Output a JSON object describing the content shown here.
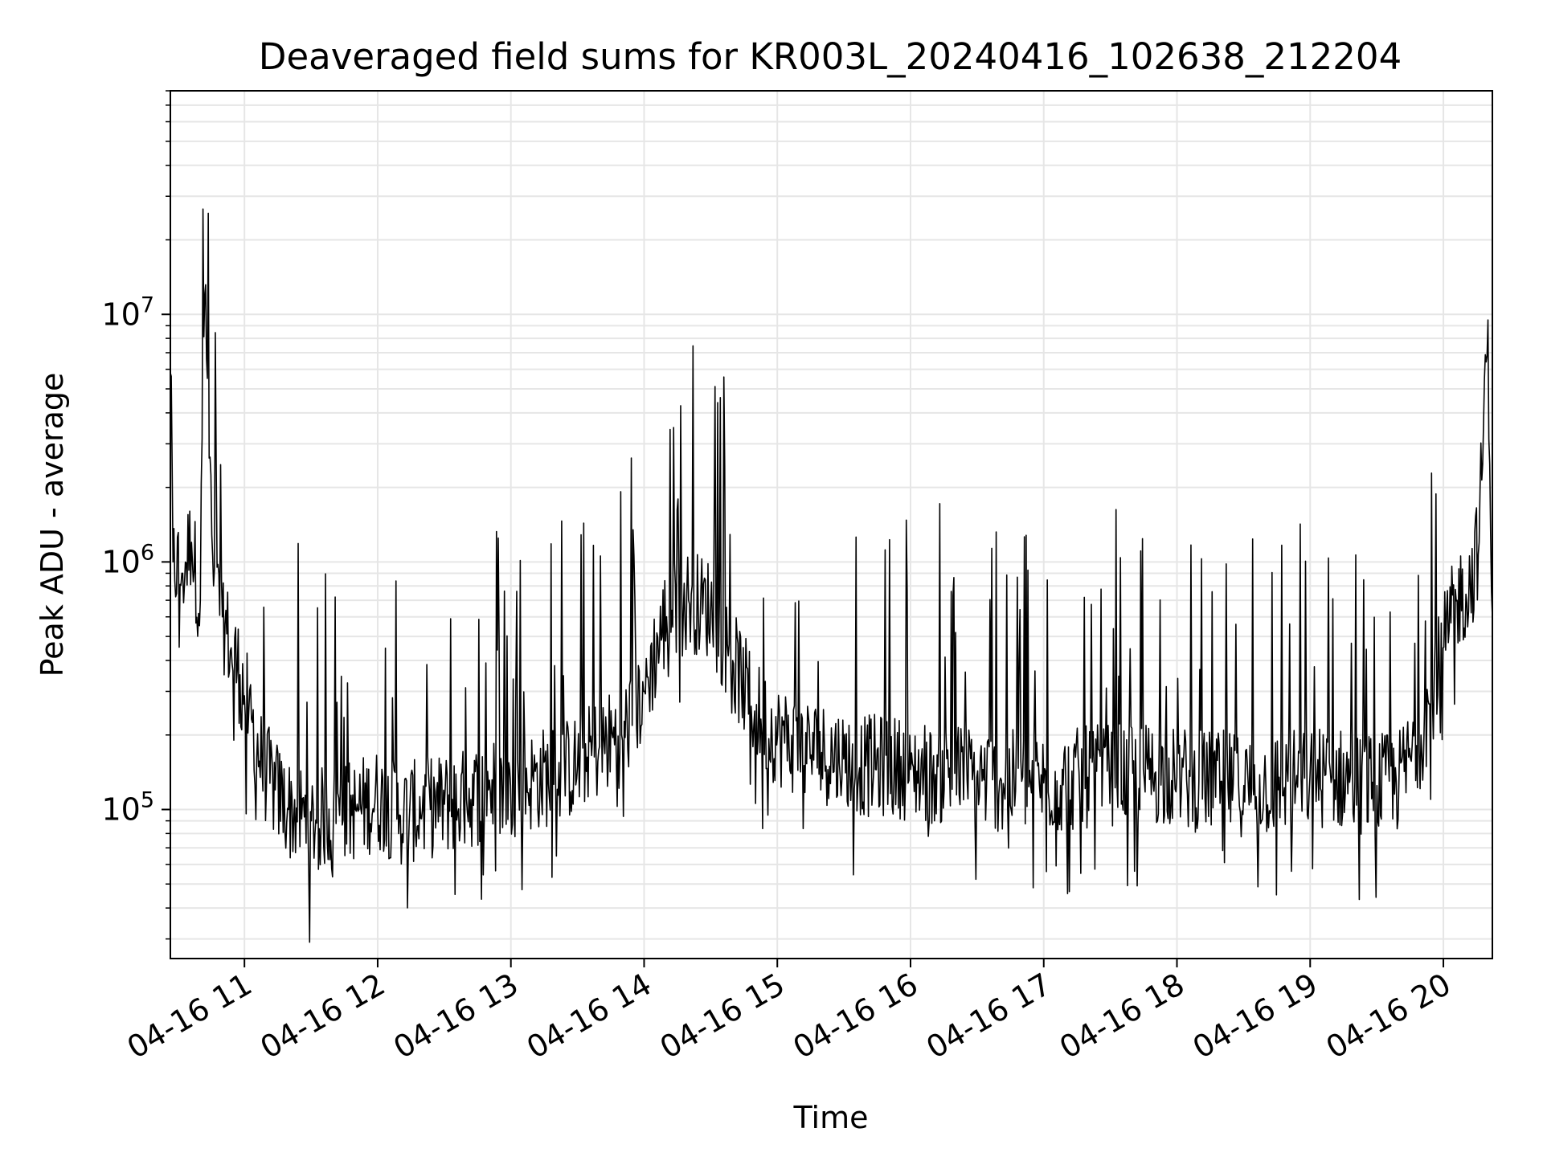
{
  "chart_data": {
    "type": "line",
    "title": "Deaveraged field sums for KR003L_20240416_102638_212204",
    "xlabel": "Time",
    "ylabel": "Peak ADU - average",
    "x_axis": {
      "kind": "time",
      "range": [
        "2024-04-16 10:26:38",
        "2024-04-16 20:22:04"
      ],
      "ticks": [
        "04-16 11",
        "04-16 12",
        "04-16 13",
        "04-16 14",
        "04-16 15",
        "04-16 16",
        "04-16 17",
        "04-16 18",
        "04-16 19",
        "04-16 20"
      ],
      "tick_rotation_deg": 30
    },
    "y_axis": {
      "scale": "log",
      "range": [
        25000,
        80000000
      ],
      "ticks": [
        {
          "value": 100000,
          "base": "10",
          "exp": "5"
        },
        {
          "value": 1000000,
          "base": "10",
          "exp": "6"
        },
        {
          "value": 10000000,
          "base": "10",
          "exp": "7"
        }
      ]
    },
    "grid": true,
    "legend": "none",
    "series": [
      {
        "color": "#000000",
        "x": [
          "10:26:38",
          "10:28",
          "10:32",
          "10:36",
          "10:40",
          "10:42",
          "10:46",
          "10:50",
          "10:54",
          "10:58",
          "11:02",
          "11:08",
          "11:14",
          "11:20",
          "11:30",
          "11:40",
          "11:50",
          "12:00",
          "12:10",
          "12:20",
          "12:30",
          "12:40",
          "12:50",
          "13:00",
          "13:10",
          "13:20",
          "13:30",
          "13:40",
          "13:50",
          "14:00",
          "14:10",
          "14:20",
          "14:30",
          "14:40",
          "14:50",
          "15:00",
          "15:10",
          "15:20",
          "15:30",
          "15:40",
          "15:50",
          "16:00",
          "16:10",
          "16:20",
          "16:30",
          "16:40",
          "16:50",
          "17:00",
          "17:10",
          "17:20",
          "17:30",
          "17:40",
          "17:50",
          "18:00",
          "18:10",
          "18:20",
          "18:30",
          "18:40",
          "18:50",
          "19:00",
          "19:10",
          "19:20",
          "19:30",
          "19:40",
          "19:50",
          "20:00",
          "20:06",
          "20:12",
          "20:16",
          "20:20",
          "20:22:04"
        ],
        "y": [
          5800000,
          1000000,
          900000,
          1200000,
          700000,
          12000000,
          800000,
          600000,
          450000,
          350000,
          250000,
          150000,
          120000,
          100000,
          90000,
          95000,
          100000,
          110000,
          95000,
          100000,
          105000,
          110000,
          120000,
          125000,
          130000,
          140000,
          150000,
          180000,
          200000,
          300000,
          600000,
          700000,
          650000,
          400000,
          250000,
          200000,
          180000,
          170000,
          160000,
          150000,
          150000,
          145000,
          140000,
          140000,
          135000,
          130000,
          130000,
          128000,
          130000,
          135000,
          138000,
          140000,
          140000,
          135000,
          130000,
          130000,
          125000,
          125000,
          130000,
          135000,
          135000,
          130000,
          125000,
          130000,
          200000,
          450000,
          700000,
          800000,
          1200000,
          9500000,
          600000
        ]
      }
    ]
  }
}
